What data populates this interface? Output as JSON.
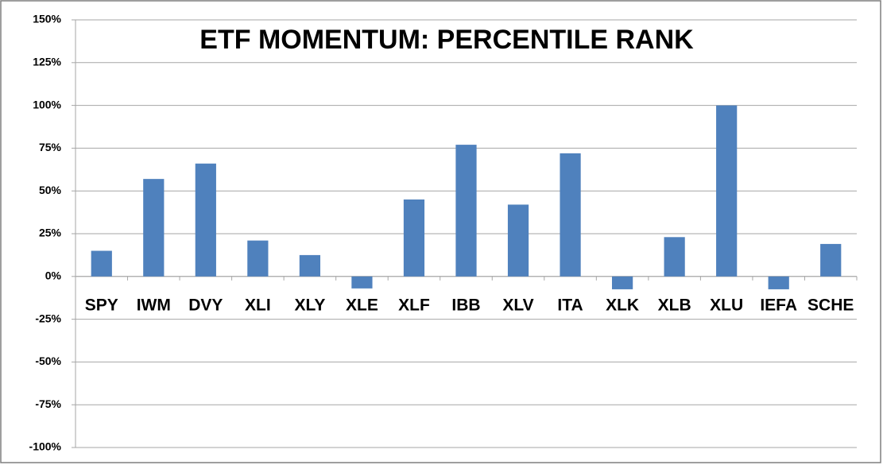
{
  "chart_data": {
    "type": "bar",
    "title": "ETF MOMENTUM: PERCENTILE RANK",
    "categories": [
      "SPY",
      "IWM",
      "DVY",
      "XLI",
      "XLY",
      "XLE",
      "XLF",
      "IBB",
      "XLV",
      "ITA",
      "XLK",
      "XLB",
      "XLU",
      "IEFA",
      "SCHE"
    ],
    "values": [
      15,
      57,
      66,
      21,
      12.5,
      -7,
      45,
      77,
      42,
      72,
      -7.5,
      23,
      100,
      -7.5,
      19
    ],
    "color": "#4f81bd",
    "ylim": [
      -100,
      150
    ],
    "yticks": [
      {
        "value": -100,
        "label": "-100%"
      },
      {
        "value": -75,
        "label": "-75%"
      },
      {
        "value": -50,
        "label": "-50%"
      },
      {
        "value": -25,
        "label": "-25%"
      },
      {
        "value": 0,
        "label": "0%"
      },
      {
        "value": 25,
        "label": "25%"
      },
      {
        "value": 50,
        "label": "50%"
      },
      {
        "value": 75,
        "label": "75%"
      },
      {
        "value": 100,
        "label": "100%"
      },
      {
        "value": 125,
        "label": "125%"
      },
      {
        "value": 150,
        "label": "150%"
      }
    ],
    "grid": true
  }
}
